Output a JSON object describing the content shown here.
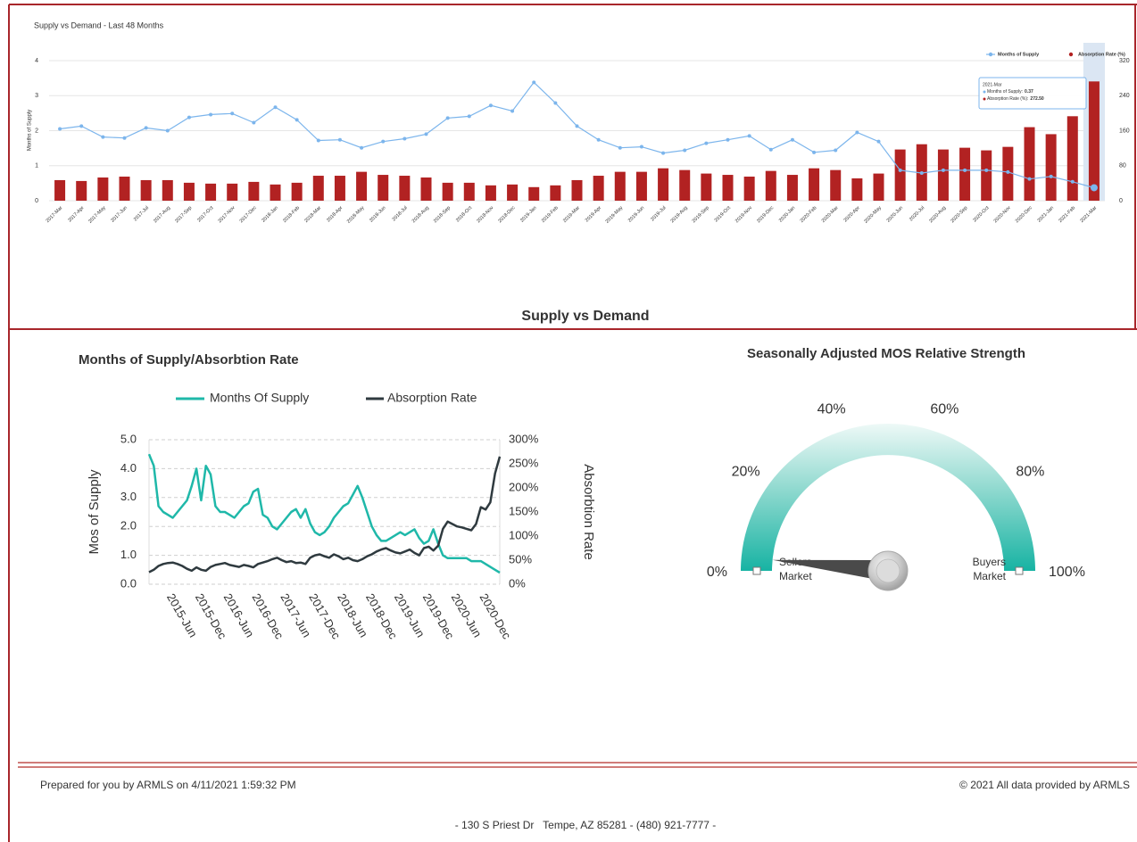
{
  "chart_data": [
    {
      "type": "combo",
      "title": "Supply vs Demand - Last 48 Months",
      "y_label": "Months of Supply",
      "categories": [
        "2017-Mar",
        "2017-Apr",
        "2017-May",
        "2017-Jun",
        "2017-Jul",
        "2017-Aug",
        "2017-Sep",
        "2017-Oct",
        "2017-Nov",
        "2017-Dec",
        "2018-Jan",
        "2018-Feb",
        "2018-Mar",
        "2018-Apr",
        "2018-May",
        "2018-Jun",
        "2018-Jul",
        "2018-Aug",
        "2018-Sep",
        "2018-Oct",
        "2018-Nov",
        "2018-Dec",
        "2019-Jan",
        "2019-Feb",
        "2019-Mar",
        "2019-Apr",
        "2019-May",
        "2019-Jun",
        "2019-Jul",
        "2019-Aug",
        "2019-Sep",
        "2019-Oct",
        "2019-Nov",
        "2019-Dec",
        "2020-Jan",
        "2020-Feb",
        "2020-Mar",
        "2020-Apr",
        "2020-May",
        "2020-Jun",
        "2020-Jul",
        "2020-Aug",
        "2020-Sep",
        "2020-Oct",
        "2020-Nov",
        "2020-Dec",
        "2021-Jan",
        "2021-Feb",
        "2021-Mar"
      ],
      "series": [
        {
          "name": "Months of Supply",
          "type": "line",
          "color": "#7cb5ec",
          "values": [
            2.05,
            2.13,
            1.82,
            1.79,
            2.08,
            2.0,
            2.38,
            2.46,
            2.49,
            2.23,
            2.67,
            2.31,
            1.72,
            1.74,
            1.51,
            1.69,
            1.77,
            1.9,
            2.36,
            2.41,
            2.72,
            2.56,
            3.38,
            2.79,
            2.13,
            1.74,
            1.51,
            1.54,
            1.36,
            1.44,
            1.64,
            1.74,
            1.85,
            1.46,
            1.74,
            1.38,
            1.44,
            1.95,
            1.69,
            0.87,
            0.79,
            0.87,
            0.87,
            0.87,
            0.82,
            0.62,
            0.69,
            0.54,
            0.37
          ]
        },
        {
          "name": "Absorption Rate (%)",
          "type": "bar",
          "axis": "y2",
          "color": "#b22222",
          "values": [
            47,
            45,
            53,
            55,
            47,
            47,
            41,
            39,
            39,
            43,
            37,
            41,
            57,
            57,
            66,
            59,
            57,
            53,
            41,
            41,
            35,
            37,
            31,
            35,
            47,
            57,
            66,
            66,
            74,
            70,
            62,
            59,
            55,
            68,
            59,
            74,
            70,
            51,
            62,
            117,
            129,
            117,
            121,
            115,
            123,
            168,
            152,
            193,
            272.5
          ]
        }
      ],
      "ylim": [
        0,
        4
      ],
      "yticks": [
        0,
        1,
        2,
        3,
        4
      ],
      "y2lim": [
        0,
        320
      ],
      "y2ticks": [
        0,
        80,
        160,
        240,
        320
      ],
      "grid": true,
      "legend": "top-right",
      "tooltip": {
        "category": "2021-Mar",
        "lines": [
          {
            "label": "Months of Supply:",
            "value": "0.37"
          },
          {
            "label": "Absorption Rate (%):",
            "value": "272.50"
          }
        ]
      }
    },
    {
      "type": "line",
      "title": "Months of Supply/Absorbtion Rate",
      "y_label": "Mos of Supply",
      "y2_label": "Absorbtion Rate",
      "categories": [
        null,
        null,
        null,
        null,
        null,
        "2015-Jun",
        null,
        null,
        null,
        null,
        null,
        "2015-Dec",
        null,
        null,
        null,
        null,
        null,
        "2016-Jun",
        null,
        null,
        null,
        null,
        null,
        "2016-Dec",
        null,
        null,
        null,
        null,
        null,
        "2017-Jun",
        null,
        null,
        null,
        null,
        null,
        "2017-Dec",
        null,
        null,
        null,
        null,
        null,
        "2018-Jun",
        null,
        null,
        null,
        null,
        null,
        "2018-Dec",
        null,
        null,
        null,
        null,
        null,
        "2019-Jun",
        null,
        null,
        null,
        null,
        null,
        "2019-Dec",
        null,
        null,
        null,
        null,
        null,
        "2020-Jun",
        null,
        null,
        null,
        null,
        null,
        "2020-Dec",
        null,
        null,
        null
      ],
      "series": [
        {
          "name": "Months Of Supply",
          "color": "#1fb8a9",
          "values": [
            4.5,
            4.1,
            2.7,
            2.5,
            2.4,
            2.3,
            2.5,
            2.7,
            2.9,
            3.4,
            4.0,
            2.9,
            4.1,
            3.8,
            2.7,
            2.5,
            2.5,
            2.4,
            2.3,
            2.5,
            2.7,
            2.8,
            3.2,
            3.3,
            2.4,
            2.3,
            2.0,
            1.9,
            2.1,
            2.3,
            2.5,
            2.6,
            2.3,
            2.6,
            2.1,
            1.8,
            1.7,
            1.8,
            2.0,
            2.3,
            2.5,
            2.7,
            2.8,
            3.1,
            3.4,
            3.0,
            2.5,
            2.0,
            1.7,
            1.5,
            1.5,
            1.6,
            1.7,
            1.8,
            1.7,
            1.8,
            1.9,
            1.6,
            1.4,
            1.5,
            1.9,
            1.4,
            1.0,
            0.9,
            0.9,
            0.9,
            0.9,
            0.9,
            0.8,
            0.8,
            0.8,
            0.7,
            0.6,
            0.5,
            0.4
          ]
        },
        {
          "name": "Absorption Rate",
          "color": "#2f3a3f",
          "axis": "y2",
          "values": [
            25,
            30,
            38,
            42,
            44,
            45,
            42,
            38,
            32,
            28,
            35,
            30,
            28,
            36,
            40,
            42,
            44,
            40,
            38,
            36,
            40,
            38,
            35,
            42,
            45,
            48,
            52,
            55,
            50,
            46,
            48,
            44,
            45,
            42,
            55,
            60,
            62,
            58,
            55,
            62,
            58,
            52,
            55,
            50,
            48,
            52,
            58,
            62,
            68,
            72,
            75,
            70,
            66,
            64,
            68,
            72,
            65,
            60,
            75,
            78,
            70,
            80,
            115,
            130,
            125,
            120,
            118,
            115,
            112,
            125,
            160,
            155,
            170,
            230,
            265
          ]
        }
      ],
      "ylim": [
        0,
        5
      ],
      "yticks": [
        {
          "value": 0,
          "label": "0.0"
        },
        {
          "value": 1,
          "label": "1.0"
        },
        {
          "value": 2,
          "label": "2.0"
        },
        {
          "value": 3,
          "label": "3.0"
        },
        {
          "value": 4,
          "label": "4.0"
        },
        {
          "value": 5,
          "label": "5.0"
        }
      ],
      "y2lim": [
        0,
        300
      ],
      "y2ticks": [
        {
          "value": 0,
          "label": "0%"
        },
        {
          "value": 50,
          "label": "50%"
        },
        {
          "value": 100,
          "label": "100%"
        },
        {
          "value": 150,
          "label": "150%"
        },
        {
          "value": 200,
          "label": "200%"
        },
        {
          "value": 250,
          "label": "250%"
        },
        {
          "value": 300,
          "label": "300%"
        }
      ],
      "grid": true,
      "legend": "top"
    },
    {
      "type": "gauge",
      "title": "Seasonally Adjusted MOS Relative Strength",
      "value": 3,
      "range": [
        0,
        100
      ],
      "ticks": [
        {
          "value": 0,
          "label": "0%"
        },
        {
          "value": 20,
          "label": "20%"
        },
        {
          "value": 40,
          "label": "40%"
        },
        {
          "value": 60,
          "label": "60%"
        },
        {
          "value": 80,
          "label": "80%"
        },
        {
          "value": 100,
          "label": "100%"
        }
      ],
      "left_label": [
        "Sellers",
        "Market"
      ],
      "right_label": [
        "Buyers",
        "Market"
      ]
    }
  ],
  "section_title": "Supply vs Demand",
  "footer": {
    "prepared": "Prepared for you by ARMLS on 4/11/2021 1:59:32 PM",
    "copyright": "© 2021 All data provided by ARMLS",
    "address": "- 130 S Priest Dr   Tempe, AZ 85281 - (480) 921-7777 -"
  }
}
